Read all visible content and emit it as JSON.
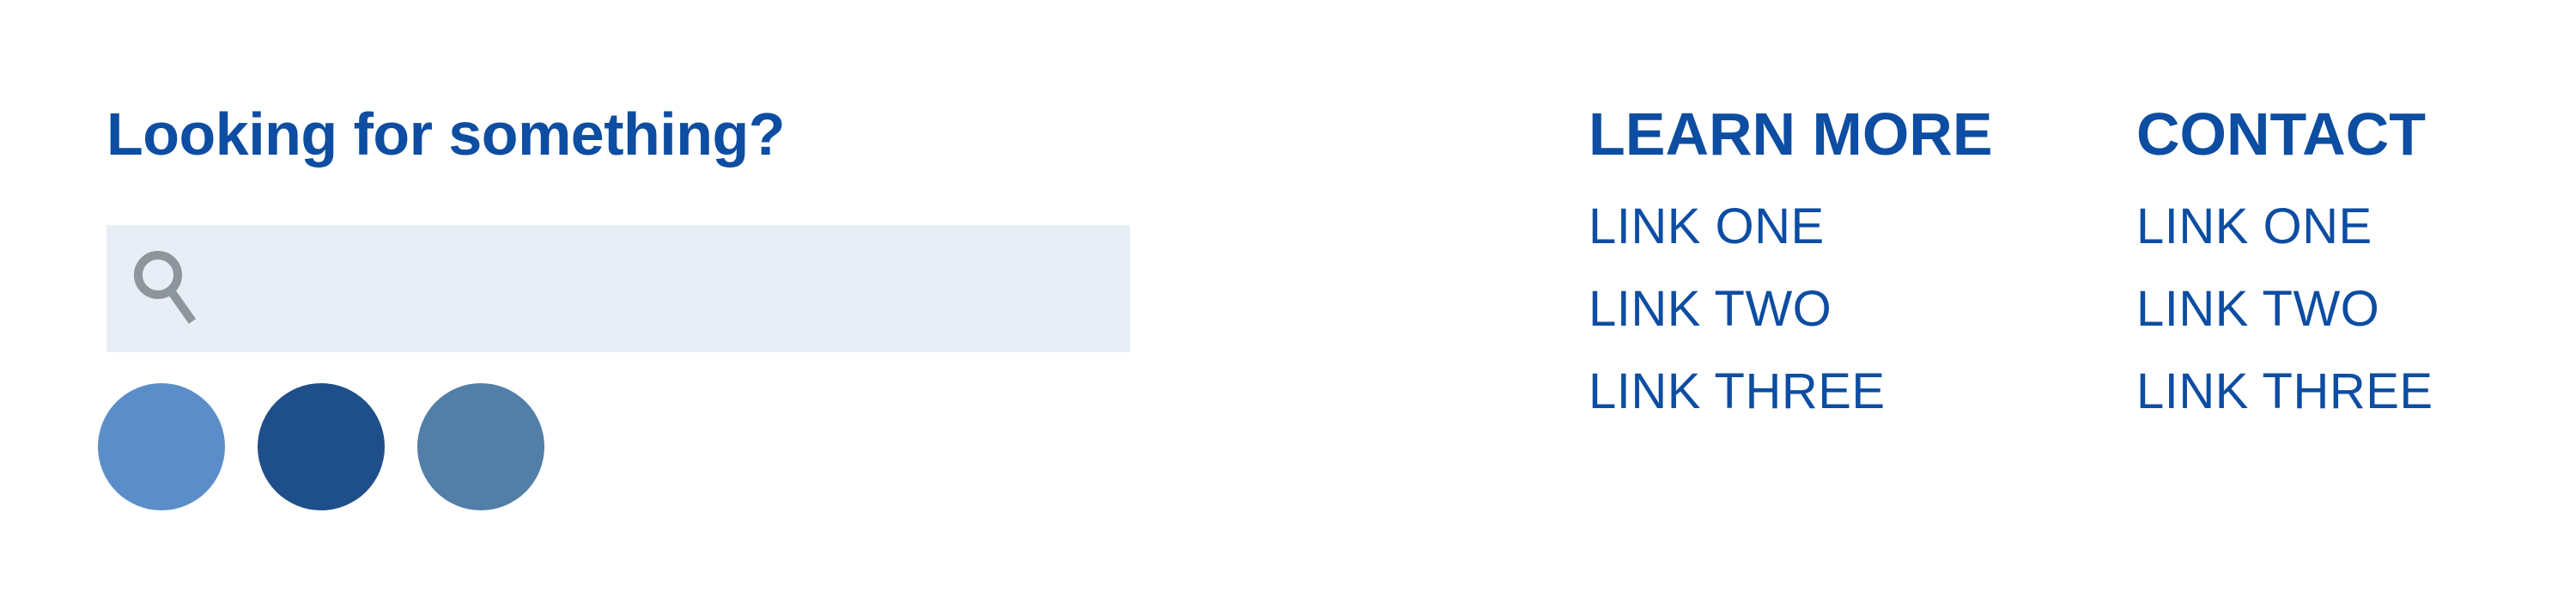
{
  "search": {
    "heading": "Looking for something?",
    "placeholder": "",
    "value": "",
    "icon": "search-icon"
  },
  "social": {
    "circles": [
      {
        "color": "#5b8ec9"
      },
      {
        "color": "#1f4f8a"
      },
      {
        "color": "#527fa8"
      }
    ]
  },
  "columns": {
    "learn_more": {
      "heading": "LEARN MORE",
      "links": [
        "LINK ONE",
        "LINK TWO",
        "LINK THREE"
      ]
    },
    "contact": {
      "heading": "CONTACT",
      "links": [
        "LINK ONE",
        "LINK TWO",
        "LINK THREE"
      ]
    }
  },
  "colors": {
    "brand": "#0d4da2",
    "search_bg": "#e7eef5",
    "icon_gray": "#8e969d"
  }
}
